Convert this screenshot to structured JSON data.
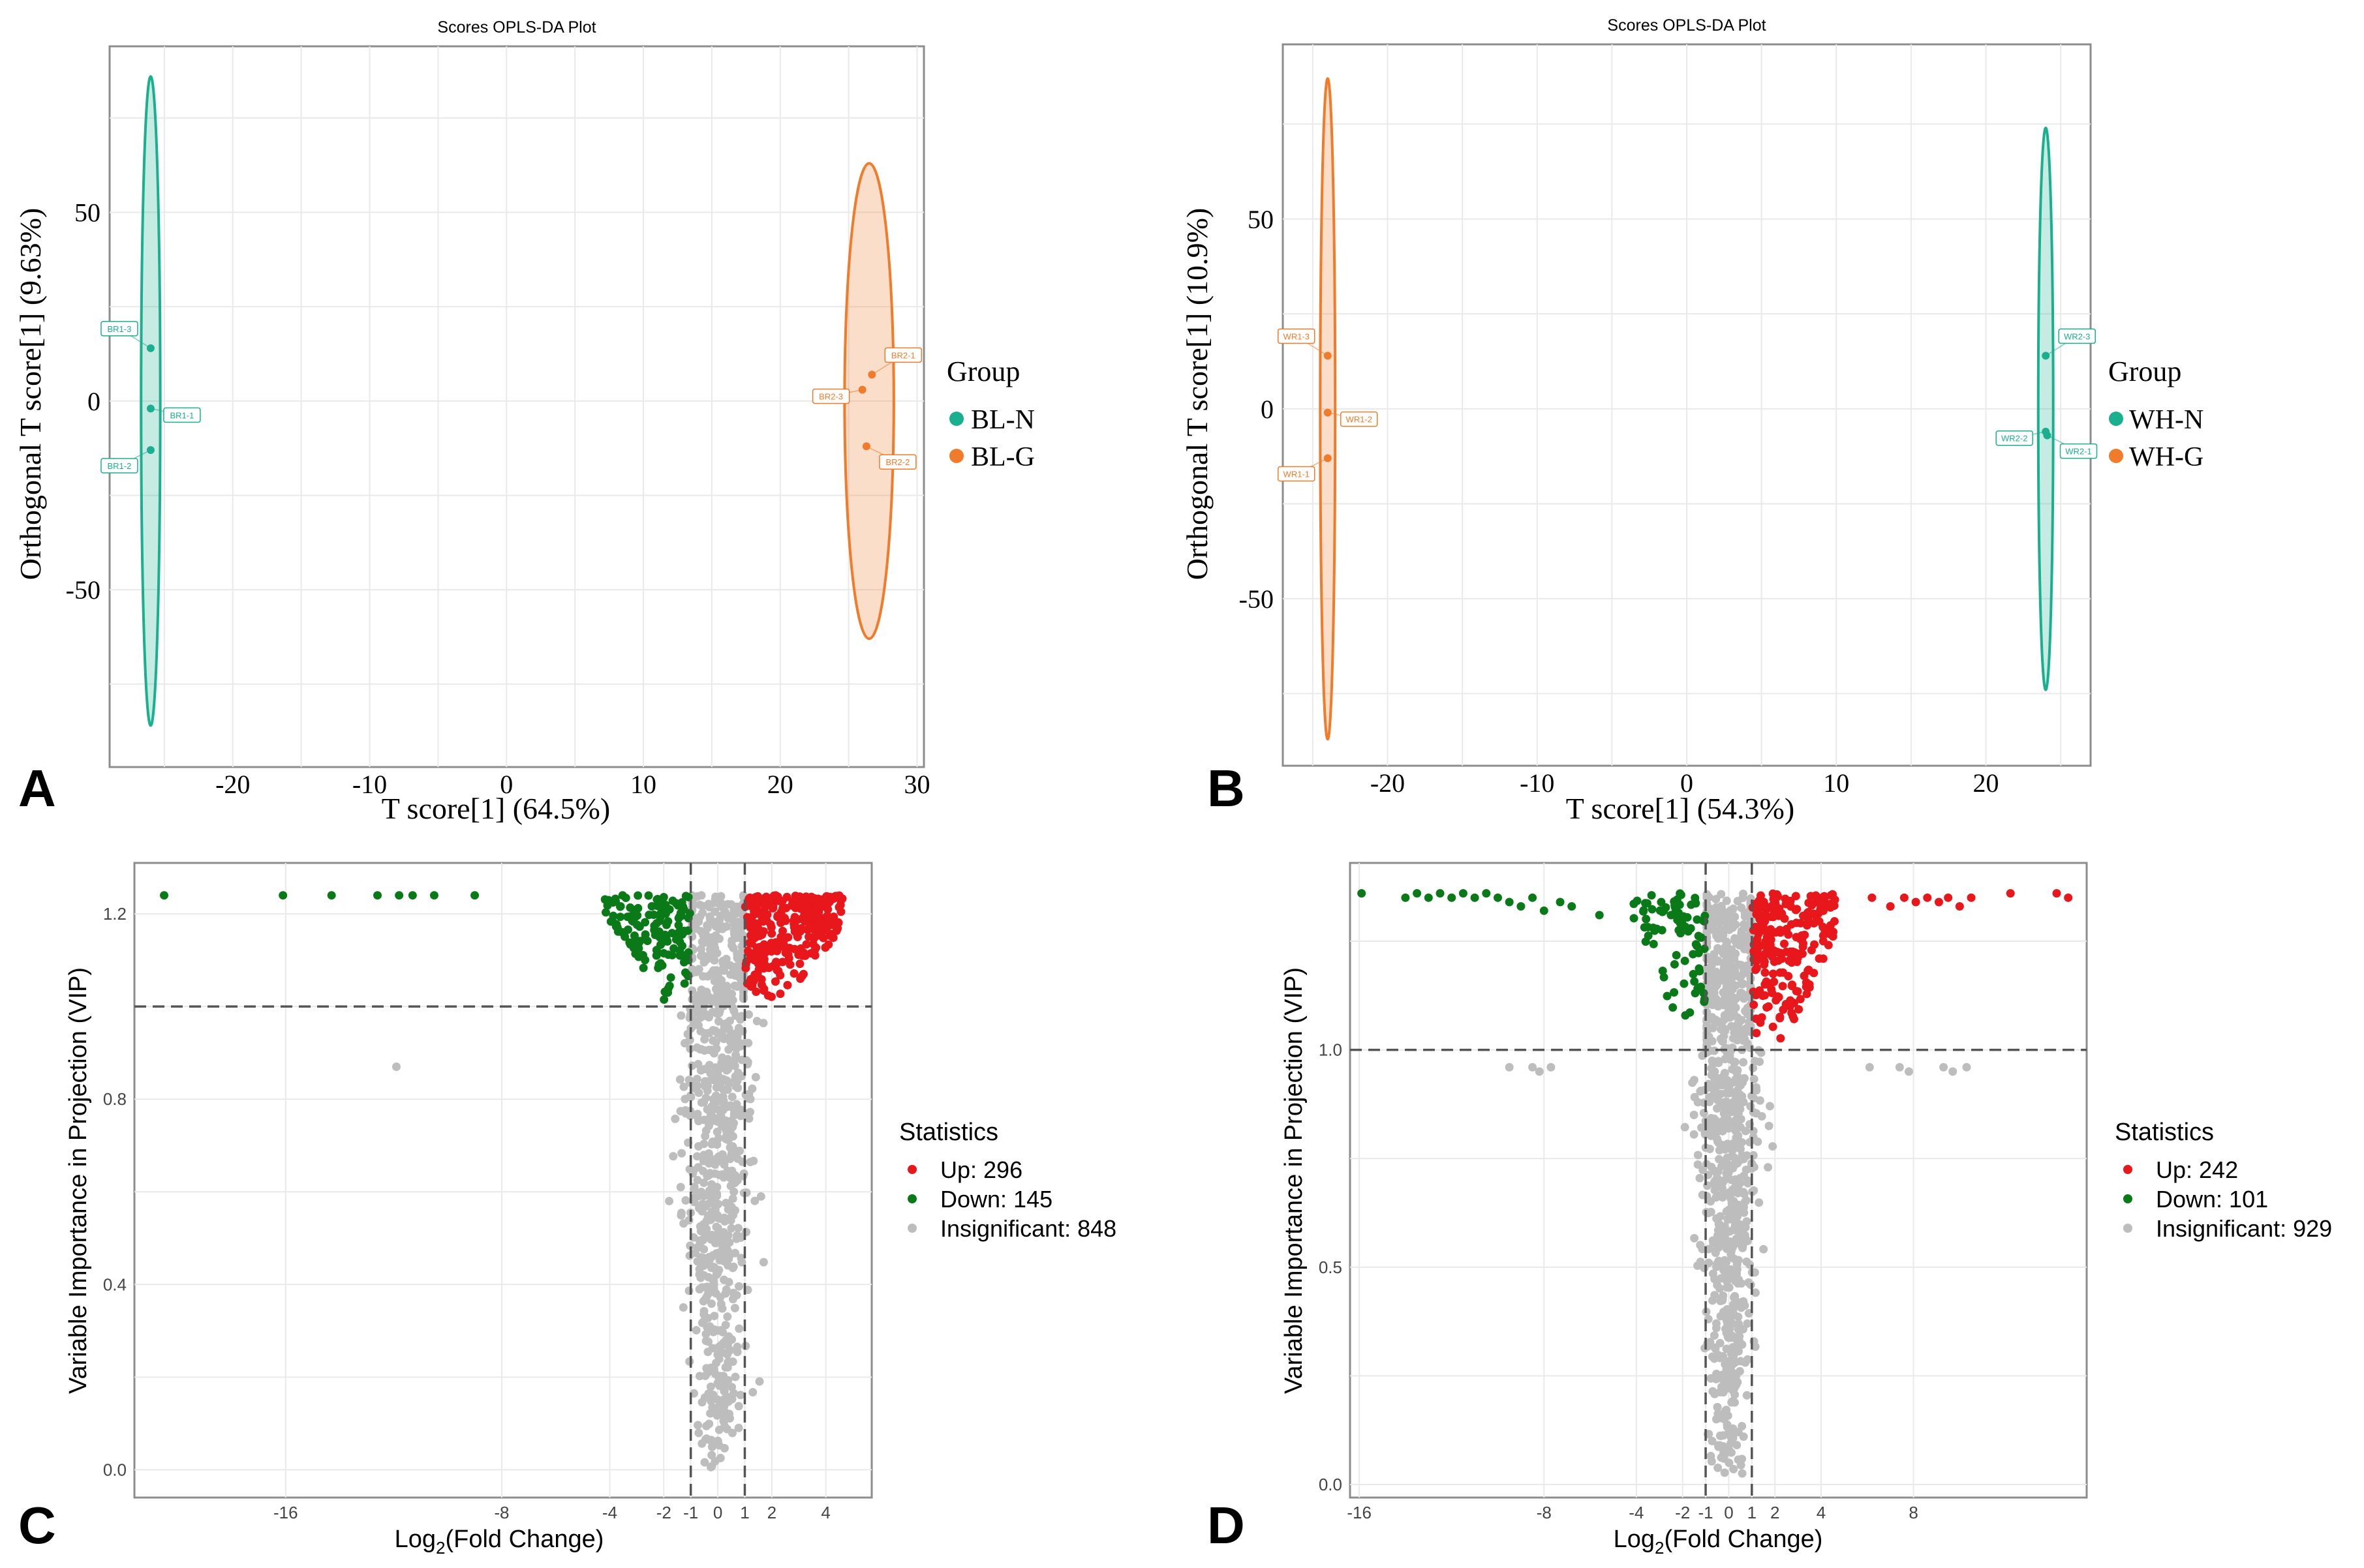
{
  "colors": {
    "green_ellipse": "#1aaf8f",
    "orange_ellipse": "#f07b2b",
    "up": "#e8171c",
    "down": "#0a7a18",
    "insig": "#bdbdbd",
    "grid": "#e9e9e9",
    "frame": "#8c8c8c"
  },
  "chart_data": [
    {
      "panel": "A",
      "type": "scatter",
      "title": "Scores OPLS-DA Plot",
      "xlabel": "T score[1] (64.5%)",
      "ylabel": "Orthogonal T score[1] (9.63%)",
      "xlim": [
        -29,
        30.5
      ],
      "ylim": [
        -97,
        94
      ],
      "xticks": [
        -20,
        -10,
        0,
        10,
        20,
        30
      ],
      "yticks": [
        -50,
        0,
        50
      ],
      "legend_title": "Group",
      "series": [
        {
          "name": "BL-N",
          "color": "#1aaf8f",
          "ellipse": {
            "cx": -26,
            "cy": 0,
            "rx": 0.7,
            "ry": 86
          },
          "points": [
            {
              "label": "BR1-3",
              "x": -26.0,
              "y": 14
            },
            {
              "label": "BR1-1",
              "x": -26.0,
              "y": -2
            },
            {
              "label": "BR1-2",
              "x": -26.0,
              "y": -13
            }
          ]
        },
        {
          "name": "BL-G",
          "color": "#f07b2b",
          "ellipse": {
            "cx": 26.5,
            "cy": 0,
            "rx": 1.8,
            "ry": 63
          },
          "points": [
            {
              "label": "BR2-1",
              "x": 26.7,
              "y": 7
            },
            {
              "label": "BR2-3",
              "x": 26.0,
              "y": 3
            },
            {
              "label": "BR2-2",
              "x": 26.3,
              "y": -12
            }
          ]
        }
      ]
    },
    {
      "panel": "B",
      "type": "scatter",
      "title": "Scores OPLS-DA Plot",
      "xlabel": "T score[1] (54.3%)",
      "ylabel": "Orthogonal T score[1] (10.9%)",
      "xlim": [
        -27,
        27
      ],
      "ylim": [
        -94,
        96
      ],
      "xticks": [
        -20,
        -10,
        0,
        10,
        20
      ],
      "yticks": [
        -50,
        0,
        50
      ],
      "legend_title": "Group",
      "series": [
        {
          "name": "WH-N",
          "color": "#1aaf8f",
          "ellipse": {
            "cx": 24,
            "cy": 0,
            "rx": 0.5,
            "ry": 74
          },
          "points": [
            {
              "label": "WR2-3",
              "x": 24.0,
              "y": 14
            },
            {
              "label": "WR2-2",
              "x": 24.0,
              "y": -6
            },
            {
              "label": "WR2-1",
              "x": 24.1,
              "y": -7
            }
          ]
        },
        {
          "name": "WH-G",
          "color": "#f07b2b",
          "ellipse": {
            "cx": -24,
            "cy": 0,
            "rx": 0.5,
            "ry": 87
          },
          "points": [
            {
              "label": "WR1-3",
              "x": -24.0,
              "y": 14
            },
            {
              "label": "WR1-2",
              "x": -24.0,
              "y": -1
            },
            {
              "label": "WR1-1",
              "x": -24.0,
              "y": -13
            }
          ]
        }
      ]
    },
    {
      "panel": "C",
      "type": "scatter",
      "subtype": "volcano",
      "xlabel": "Log2(Fold Change)",
      "ylabel": "Variable Importance in Projection (VIP)",
      "xlim": [
        -21.6,
        5.7
      ],
      "ylim": [
        -0.06,
        1.31
      ],
      "xticks": [
        -16,
        -8,
        -4,
        -2,
        -1,
        0,
        1,
        2,
        4
      ],
      "xtick_positions": [
        -16.0,
        -8.0,
        -4.0,
        -2.0,
        -1.0,
        0.0,
        1.0,
        2.0,
        4.0
      ],
      "yticks": [
        0.0,
        0.4,
        0.8,
        1.2
      ],
      "ytick_labels": [
        "0.0",
        "0.4",
        "0.8",
        "1.2"
      ],
      "vlines": [
        -1,
        1
      ],
      "hline": 1.0,
      "legend_title": "Statistics",
      "legend": [
        {
          "label": "Up: 296",
          "count": 296,
          "color": "#e8171c"
        },
        {
          "label": "Down: 145",
          "count": 145,
          "color": "#0a7a18"
        },
        {
          "label": "Insignificant: 848",
          "count": 848,
          "color": "#bdbdbd"
        }
      ],
      "outlier_points": [
        {
          "x": -20.5,
          "y": 1.24,
          "group": "down"
        },
        {
          "x": -16.1,
          "y": 1.24,
          "group": "down"
        },
        {
          "x": -14.3,
          "y": 1.24,
          "group": "down"
        },
        {
          "x": -12.6,
          "y": 1.24,
          "group": "down"
        },
        {
          "x": -11.8,
          "y": 1.24,
          "group": "down"
        },
        {
          "x": -11.3,
          "y": 1.24,
          "group": "down"
        },
        {
          "x": -10.5,
          "y": 1.24,
          "group": "down"
        },
        {
          "x": -9.0,
          "y": 1.24,
          "group": "down"
        },
        {
          "x": -11.9,
          "y": 0.87,
          "group": "insig"
        },
        {
          "x": -1.8,
          "y": 0.58,
          "group": "insig"
        },
        {
          "x": 1.6,
          "y": 0.59,
          "group": "insig"
        }
      ],
      "seed": 11
    },
    {
      "panel": "D",
      "type": "scatter",
      "subtype": "volcano",
      "xlabel": "Log2(Fold Change)",
      "ylabel": "Variable Importance in Projection (VIP)",
      "xlim": [
        -16.4,
        15.5
      ],
      "ylim": [
        -0.03,
        1.43
      ],
      "xticks": [
        -16,
        -8,
        -4,
        -2,
        -1,
        0,
        1,
        2,
        4,
        8
      ],
      "xtick_positions": [
        -16.0,
        -8.0,
        -4.0,
        -2.0,
        -1.0,
        0.0,
        1.0,
        2.0,
        4.0,
        8.0
      ],
      "yticks": [
        0.0,
        0.5,
        1.0
      ],
      "ytick_labels": [
        "0.0",
        "0.5",
        "1.0"
      ],
      "vlines": [
        -1,
        1
      ],
      "hline": 1.0,
      "legend_title": "Statistics",
      "legend": [
        {
          "label": "Up: 242",
          "count": 242,
          "color": "#e8171c"
        },
        {
          "label": "Down: 101",
          "count": 101,
          "color": "#0a7a18"
        },
        {
          "label": "Insignificant: 929",
          "count": 929,
          "color": "#bdbdbd"
        }
      ],
      "outlier_points": [
        {
          "x": -15.9,
          "y": 1.36,
          "group": "down"
        },
        {
          "x": -14.0,
          "y": 1.35,
          "group": "down"
        },
        {
          "x": -13.5,
          "y": 1.36,
          "group": "down"
        },
        {
          "x": -13.0,
          "y": 1.35,
          "group": "down"
        },
        {
          "x": -12.5,
          "y": 1.36,
          "group": "down"
        },
        {
          "x": -12.0,
          "y": 1.35,
          "group": "down"
        },
        {
          "x": -11.5,
          "y": 1.36,
          "group": "down"
        },
        {
          "x": -11.0,
          "y": 1.35,
          "group": "down"
        },
        {
          "x": -10.5,
          "y": 1.36,
          "group": "down"
        },
        {
          "x": -10.0,
          "y": 1.35,
          "group": "down"
        },
        {
          "x": -9.5,
          "y": 1.34,
          "group": "down"
        },
        {
          "x": -9.0,
          "y": 1.33,
          "group": "down"
        },
        {
          "x": -8.5,
          "y": 1.35,
          "group": "down"
        },
        {
          "x": -8.0,
          "y": 1.32,
          "group": "down"
        },
        {
          "x": -7.3,
          "y": 1.34,
          "group": "down"
        },
        {
          "x": -6.8,
          "y": 1.33,
          "group": "down"
        },
        {
          "x": -5.6,
          "y": 1.31,
          "group": "down"
        },
        {
          "x": 6.2,
          "y": 1.35,
          "group": "up"
        },
        {
          "x": 7.0,
          "y": 1.33,
          "group": "up"
        },
        {
          "x": 7.6,
          "y": 1.35,
          "group": "up"
        },
        {
          "x": 8.1,
          "y": 1.34,
          "group": "up"
        },
        {
          "x": 8.6,
          "y": 1.35,
          "group": "up"
        },
        {
          "x": 9.1,
          "y": 1.34,
          "group": "up"
        },
        {
          "x": 9.5,
          "y": 1.35,
          "group": "up"
        },
        {
          "x": 10.0,
          "y": 1.33,
          "group": "up"
        },
        {
          "x": 10.5,
          "y": 1.35,
          "group": "up"
        },
        {
          "x": 12.2,
          "y": 1.36,
          "group": "up"
        },
        {
          "x": 14.2,
          "y": 1.36,
          "group": "up"
        },
        {
          "x": 14.7,
          "y": 1.35,
          "group": "up"
        },
        {
          "x": -9.5,
          "y": 0.96,
          "group": "insig"
        },
        {
          "x": -8.5,
          "y": 0.96,
          "group": "insig"
        },
        {
          "x": -8.2,
          "y": 0.95,
          "group": "insig"
        },
        {
          "x": -7.7,
          "y": 0.96,
          "group": "insig"
        },
        {
          "x": 6.1,
          "y": 0.96,
          "group": "insig"
        },
        {
          "x": 7.4,
          "y": 0.96,
          "group": "insig"
        },
        {
          "x": 7.8,
          "y": 0.95,
          "group": "insig"
        },
        {
          "x": 9.3,
          "y": 0.96,
          "group": "insig"
        },
        {
          "x": 9.7,
          "y": 0.95,
          "group": "insig"
        },
        {
          "x": 10.3,
          "y": 0.96,
          "group": "insig"
        }
      ],
      "seed": 29
    }
  ],
  "panel_labels": [
    "A",
    "B",
    "C",
    "D"
  ]
}
